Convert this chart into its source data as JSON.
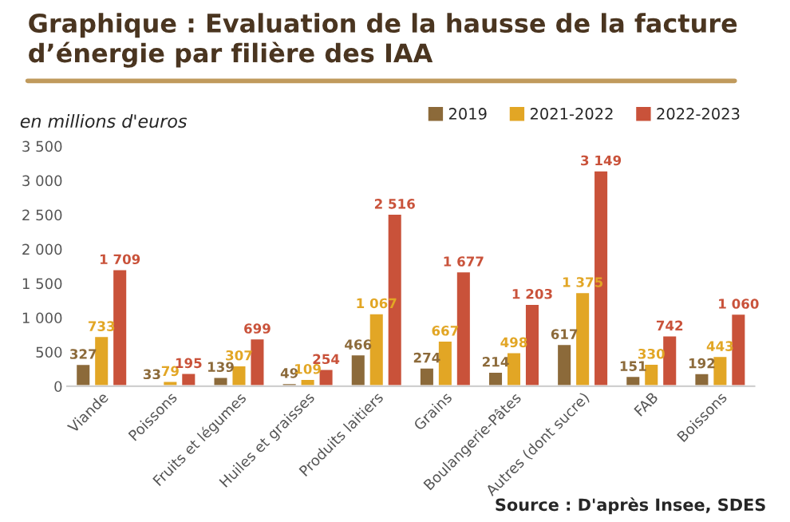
{
  "chart_data": {
    "type": "bar",
    "title": "Graphique : Evaluation de la hausse de la facture d’énergie par filière des IAA",
    "ylabel": "en millions d'euros",
    "categories": [
      "Viande",
      "Poissons",
      "Fruits et légumes",
      "Huiles et graisses",
      "Produits laitiers",
      "Grains",
      "Boulangerie-Pâtes",
      "Autres (dont sucre)",
      "FAB",
      "Boissons"
    ],
    "series": [
      {
        "name": "2019",
        "color": "#8c6a3a",
        "values": [
          327,
          33,
          139,
          49,
          466,
          274,
          214,
          617,
          151,
          192
        ],
        "value_labels": [
          "327",
          "33",
          "139",
          "49",
          "466",
          "274",
          "214",
          "617",
          "151",
          "192"
        ]
      },
      {
        "name": "2021-2022",
        "color": "#e2a625",
        "values": [
          733,
          79,
          307,
          109,
          1067,
          667,
          498,
          1375,
          330,
          443
        ],
        "value_labels": [
          "733",
          "79",
          "307",
          "109",
          "1 067",
          "667",
          "498",
          "1 375",
          "330",
          "443"
        ]
      },
      {
        "name": "2022-2023",
        "color": "#c9523a",
        "values": [
          1709,
          195,
          699,
          254,
          2516,
          1677,
          1203,
          3149,
          742,
          1060
        ],
        "value_labels": [
          "1 709",
          "195",
          "699",
          "254",
          "2 516",
          "1 677",
          "1 203",
          "3 149",
          "742",
          "1 060"
        ]
      }
    ],
    "ylim": [
      0,
      3500
    ],
    "yticks": [
      {
        "value": 0,
        "label": "0"
      },
      {
        "value": 500,
        "label": "500"
      },
      {
        "value": 1000,
        "label": "1 000"
      },
      {
        "value": 1500,
        "label": "1 500"
      },
      {
        "value": 2000,
        "label": "2 000"
      },
      {
        "value": 2500,
        "label": "2 500"
      },
      {
        "value": 3000,
        "label": "3 000"
      },
      {
        "value": 3500,
        "label": "3 500"
      }
    ],
    "grid": false,
    "legend": "top right",
    "annotations": [
      "Source : D'après Insee, SDES"
    ]
  }
}
